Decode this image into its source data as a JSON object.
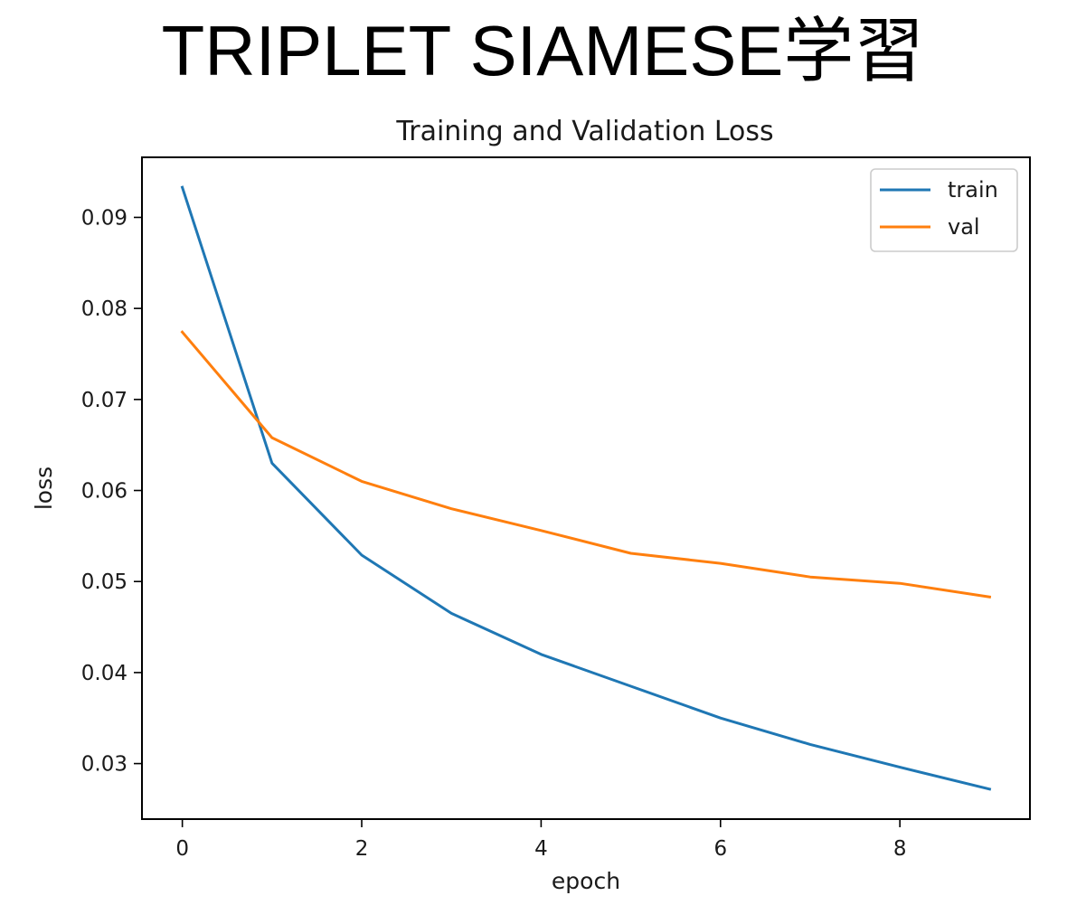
{
  "page": {
    "heading": "TRIPLET SIAMESE学習"
  },
  "chart_data": {
    "type": "line",
    "title": "Training and Validation Loss",
    "xlabel": "epoch",
    "ylabel": "loss",
    "x": [
      0,
      1,
      2,
      3,
      4,
      5,
      6,
      7,
      8,
      9
    ],
    "series": [
      {
        "name": "train",
        "color": "#1f77b4",
        "values": [
          0.0933,
          0.063,
          0.0529,
          0.0465,
          0.042,
          0.0385,
          0.035,
          0.0321,
          0.0296,
          0.0272
        ]
      },
      {
        "name": "val",
        "color": "#ff7f0e",
        "values": [
          0.0774,
          0.0658,
          0.061,
          0.058,
          0.0556,
          0.0531,
          0.052,
          0.0505,
          0.0498,
          0.0483
        ]
      }
    ],
    "xlim": [
      -0.45,
      9.45
    ],
    "ylim": [
      0.0239,
      0.0966
    ],
    "xticks": [
      0,
      2,
      4,
      6,
      8
    ],
    "xtick_labels": [
      "0",
      "2",
      "4",
      "6",
      "8"
    ],
    "yticks": [
      0.03,
      0.04,
      0.05,
      0.06,
      0.07,
      0.08,
      0.09
    ],
    "ytick_labels": [
      "0.03",
      "0.04",
      "0.05",
      "0.06",
      "0.07",
      "0.08",
      "0.09"
    ],
    "grid": false,
    "legend_position": "top-right"
  }
}
